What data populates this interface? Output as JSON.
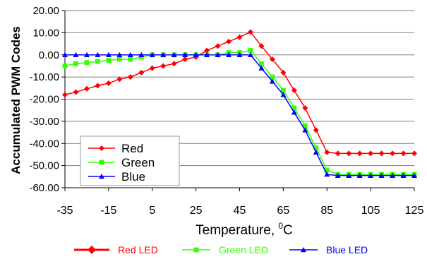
{
  "chart_data": {
    "type": "line",
    "xlabel": "Temperature, ",
    "xlabel_unit_sup": "0",
    "xlabel_unit": "C",
    "ylabel": "Accumulated  PWM Codes",
    "xlim": [
      -35,
      125
    ],
    "ylim": [
      -60,
      20
    ],
    "xticks": [
      "-35",
      "-15",
      "5",
      "25",
      "45",
      "65",
      "85",
      "105",
      "125"
    ],
    "yticks": [
      "20.00",
      "10.00",
      "0.00",
      "-10.00",
      "-20.00",
      "-30.00",
      "-40.00",
      "-50.00",
      "-60.00"
    ],
    "grid": "horizontal",
    "legend_inner_placement": "bottom-left",
    "legend_inner": [
      "Red",
      "Green",
      "Blue"
    ],
    "legend_outer": [
      "Red LED",
      "Green LED",
      "Blue LED"
    ],
    "series": [
      {
        "name": "Red",
        "color": "#ff0000",
        "marker": "diamond",
        "x": [
          -35,
          -30,
          -25,
          -20,
          -15,
          -10,
          -5,
          0,
          5,
          10,
          15,
          20,
          25,
          30,
          35,
          40,
          45,
          50,
          55,
          60,
          65,
          70,
          75,
          80,
          85,
          90,
          95,
          100,
          105,
          110,
          115,
          120,
          125
        ],
        "y": [
          -18,
          -16.8,
          -15.3,
          -13.9,
          -12.8,
          -11,
          -10,
          -8,
          -6,
          -5,
          -4,
          -2,
          -1,
          2,
          4,
          6,
          8,
          10.3,
          4,
          -2,
          -8,
          -16,
          -24,
          -34,
          -44,
          -44.5,
          -44.5,
          -44.5,
          -44.5,
          -44.5,
          -44.5,
          -44.5,
          -44.5
        ]
      },
      {
        "name": "Green",
        "color": "#33ff00",
        "marker": "square",
        "x": [
          -35,
          -30,
          -25,
          -20,
          -15,
          -10,
          -5,
          0,
          5,
          10,
          15,
          20,
          25,
          30,
          35,
          40,
          45,
          50,
          55,
          60,
          65,
          70,
          75,
          80,
          85,
          90,
          95,
          100,
          105,
          110,
          115,
          120,
          125
        ],
        "y": [
          -5,
          -4,
          -3.5,
          -3,
          -2.5,
          -2,
          -2,
          -1,
          0,
          0,
          0,
          0,
          0,
          0,
          0,
          1,
          1,
          2,
          -4,
          -10,
          -16,
          -24,
          -32,
          -42,
          -52,
          -54,
          -54,
          -54,
          -54,
          -54,
          -54,
          -54,
          -54
        ]
      },
      {
        "name": "Blue",
        "color": "#0000ff",
        "marker": "triangle",
        "x": [
          -35,
          -30,
          -25,
          -20,
          -15,
          -10,
          -5,
          0,
          5,
          10,
          15,
          20,
          25,
          30,
          35,
          40,
          45,
          50,
          55,
          60,
          65,
          70,
          75,
          80,
          85,
          90,
          95,
          100,
          105,
          110,
          115,
          120,
          125
        ],
        "y": [
          0,
          0,
          0,
          0,
          0,
          0,
          0,
          0,
          0,
          0,
          0,
          0,
          0,
          0,
          0,
          0,
          0,
          0,
          -6,
          -12,
          -18,
          -26,
          -34,
          -44,
          -54,
          -54.5,
          -54.5,
          -54.5,
          -54.5,
          -54.5,
          -54.5,
          -54.5,
          -54.5
        ]
      }
    ]
  }
}
